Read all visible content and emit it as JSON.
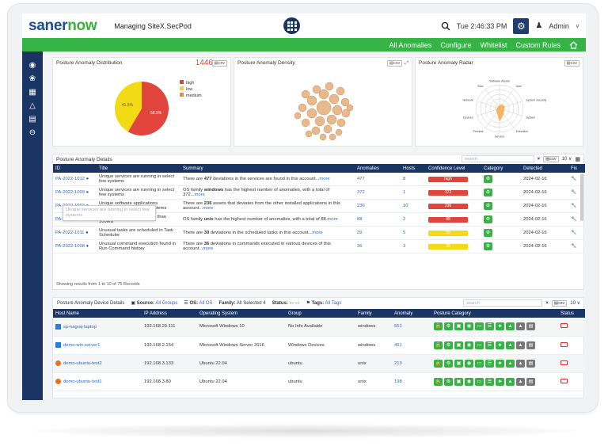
{
  "brand": {
    "part1": "saner",
    "part2": "now"
  },
  "managing": "Managing SiteX.SecPod",
  "time": "Tue 2:46:33 PM",
  "user": "Admin",
  "nav": [
    "All Anomalies",
    "Configure",
    "Whitelist",
    "Custom Rules"
  ],
  "distribution": {
    "title": "Posture Anomaly Distribution",
    "count": "1446",
    "csv": "csv",
    "legend": [
      "high",
      "low",
      "medium"
    ],
    "legend_colors": [
      "#e0443b",
      "#f2da15",
      "#f28f21"
    ],
    "slices": [
      {
        "label": "high",
        "percent": 58.5,
        "text": "58.5%"
      },
      {
        "label": "low",
        "percent": 41.5,
        "text": "41.5%"
      }
    ]
  },
  "density": {
    "title": "Posture Anomaly Density",
    "csv": "csv"
  },
  "radar": {
    "title": "Posture Anomaly Radar",
    "csv": "csv",
    "axes": [
      "Software Assets",
      "User",
      "System Security",
      "System",
      "Execution",
      "Service",
      "Process",
      "Devices",
      "Network",
      "Bios"
    ]
  },
  "details": {
    "title": "Posture Anomaly Details",
    "search_placeholder": "search",
    "csv": "csv",
    "pagesize": "10",
    "columns": [
      "ID",
      "Title",
      "Summary",
      "Anomalies",
      "Hosts",
      "Confidence Level",
      "Category",
      "Detected",
      "Fix"
    ],
    "rows": [
      {
        "id": "PA-2022-1012",
        "title": "Unique services are running in select few systems",
        "sum_a": "There are ",
        "sum_b": "477",
        "sum_c": " deviations in the services are found in this account...",
        "more": "more",
        "anomalies": "477",
        "hosts": "8",
        "conf": "high",
        "conf_color": "#e0443b",
        "detected": "2024-02-16"
      },
      {
        "id": "PA-2022-1009",
        "title": "Unique services are running in select few systems",
        "sum_a": "OS family ",
        "sum_b": "windows",
        "sum_c": " has the highest number of anomalies, with a total of 372...",
        "more": "more",
        "anomalies": "372",
        "hosts": "1",
        "conf": "372",
        "conf_color": "#e0443b",
        "detected": "2024-02-16"
      },
      {
        "id": "PA-2022-1002",
        "title": "Unique software applications determined in select few systems",
        "sum_a": "There are ",
        "sum_b": "236",
        "sum_c": " assets that deviates from the other installed applications in this account...",
        "more": "more",
        "anomalies": "236",
        "hosts": "10",
        "conf": "236",
        "conf_color": "#e0443b",
        "detected": "2024-02-16"
      },
      {
        "id": "PA-2022-1044",
        "title": "Available Disk Space is less than 100MB",
        "sum_a": "OS family ",
        "sum_b": "unix",
        "sum_c": " has the highest number of anomalies, with a total of 88.",
        "more": "more",
        "anomalies": "88",
        "hosts": "2",
        "conf": "88",
        "conf_color": "#e0443b",
        "detected": "2024-02-16"
      },
      {
        "id": "PA-2022-1011",
        "title": "Unusual tasks are scheduled in Task Scheduler",
        "sum_a": "There are ",
        "sum_b": "39",
        "sum_c": " deviations in the scheduled tasks in this account...",
        "more": "more",
        "anomalies": "39",
        "hosts": "5",
        "conf": "39",
        "conf_color": "#f2da15",
        "detected": "2024-02-16"
      },
      {
        "id": "PA-2022-1008",
        "title": "Unusual command execution found in Run Command history",
        "sum_a": "There are ",
        "sum_b": "36",
        "sum_c": " deviations in commands executed in various devices of this account...",
        "more": "more",
        "anomalies": "36",
        "hosts": "3",
        "conf": "36",
        "conf_color": "#f2da15",
        "detected": "2024-02-16"
      }
    ],
    "footer": "Showing results from 1 to 10 of 75 Records",
    "tooltip": "Unique services are running in select few systems"
  },
  "devices": {
    "title": "Posture Anomaly Device Details",
    "source_label": "Source:",
    "source_value": "All Groups",
    "os_label": "OS:",
    "os_value": "All OS",
    "family_label": "Family:",
    "family_value": "All Selected 4",
    "status_label": "Status:",
    "tags_label": "Tags:",
    "tags_value": "All Tags",
    "search_placeholder": "search",
    "csv": "csv",
    "pagesize": "10",
    "columns": [
      "Host Name",
      "IP Address",
      "Operating System",
      "Group",
      "Family",
      "Anomaly",
      "Posture Category",
      "Status"
    ],
    "rows": [
      {
        "host": "sp-nagraj-laptop",
        "icon": "windows",
        "ip": "192.168.29.111",
        "os": "Microsoft Windows 10",
        "group": "No Info Available",
        "family": "windows",
        "anomaly": "551"
      },
      {
        "host": "demo-win-server1",
        "icon": "windows",
        "ip": "192.168.2.154",
        "os": "Microsoft Windows Server 2016",
        "group": "Windows Devices",
        "family": "windows",
        "anomaly": "451"
      },
      {
        "host": "demo-ubuntu-test2",
        "icon": "ubuntu",
        "ip": "192.168.3.133",
        "os": "Ubuntu 22.04",
        "group": "ubuntu",
        "family": "unix",
        "anomaly": "213"
      },
      {
        "host": "demo-ubuntu-test1",
        "icon": "ubuntu",
        "ip": "192.168.3.80",
        "os": "Ubuntu 22.04",
        "group": "ubuntu",
        "family": "unix",
        "anomaly": "198"
      }
    ]
  }
}
